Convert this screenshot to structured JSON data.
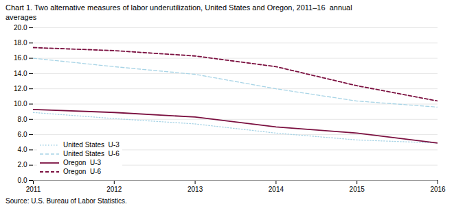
{
  "chart_data": {
    "type": "line",
    "title": "Chart 1. Two alternative measures of labor underutilization, United States and Oregon, 2011–16  annual\naverages",
    "caption": "Source: U.S. Bureau of Labor Statistics.",
    "x": [
      2011,
      2012,
      2013,
      2014,
      2015,
      2016
    ],
    "xlim": [
      2011,
      2016
    ],
    "xticks": [
      2011,
      2012,
      2013,
      2014,
      2015,
      2016
    ],
    "series": [
      {
        "name": "United States  U-3",
        "color": "#a8d4e6",
        "line_style": "dotted",
        "values": [
          8.9,
          8.1,
          7.4,
          6.2,
          5.3,
          4.9
        ]
      },
      {
        "name": "United States  U-6",
        "color": "#a8d4e6",
        "line_style": "dashed",
        "values": [
          16.0,
          14.9,
          13.9,
          12.0,
          10.4,
          9.6
        ]
      },
      {
        "name": "Oregon  U-3",
        "color": "#7b1040",
        "line_style": "solid",
        "values": [
          9.3,
          8.9,
          8.3,
          7.0,
          6.2,
          4.9
        ]
      },
      {
        "name": "Oregon  U-6",
        "color": "#7b1040",
        "line_style": "dashed",
        "values": [
          17.4,
          17.0,
          16.3,
          14.9,
          12.4,
          10.4
        ]
      }
    ],
    "ylim": [
      0.0,
      20.0
    ],
    "yticks": [
      {
        "value": 0,
        "label": "0.0"
      },
      {
        "value": 2,
        "label": "2.0"
      },
      {
        "value": 4,
        "label": "4.0"
      },
      {
        "value": 6,
        "label": "6.0"
      },
      {
        "value": 8,
        "label": "8.0"
      },
      {
        "value": 10,
        "label": "10.0"
      },
      {
        "value": 12,
        "label": "12.0"
      },
      {
        "value": 14,
        "label": "14.0"
      },
      {
        "value": 16,
        "label": "16.0"
      },
      {
        "value": 18,
        "label": "18.0"
      },
      {
        "value": 20,
        "label": "20.0"
      }
    ],
    "grid": true,
    "legend": "lower left"
  }
}
